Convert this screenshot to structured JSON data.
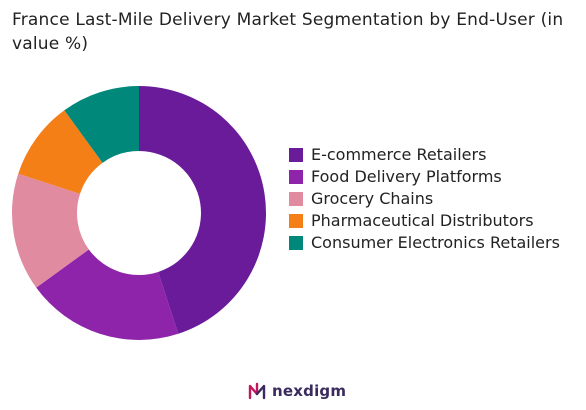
{
  "chart_data": {
    "type": "pie",
    "title": "France Last-Mile Delivery Market Segmentation by End-User (in value %)",
    "donut": true,
    "legend_position": "right",
    "series": [
      {
        "name": "E-commerce Retailers",
        "value": 45,
        "color": "#6a1b9a"
      },
      {
        "name": "Food Delivery Platforms",
        "value": 20,
        "color": "#8e24aa"
      },
      {
        "name": "Grocery Chains",
        "value": 15,
        "color": "#e08ba0"
      },
      {
        "name": "Pharmaceutical Distributors",
        "value": 10,
        "color": "#f57f17"
      },
      {
        "name": "Consumer Electronics Retailers",
        "value": 10,
        "color": "#00897b"
      }
    ]
  },
  "brand": {
    "name": "nexdigm",
    "logo_icon": "nexdigm-logo-icon",
    "color": "#3a2a5e"
  }
}
